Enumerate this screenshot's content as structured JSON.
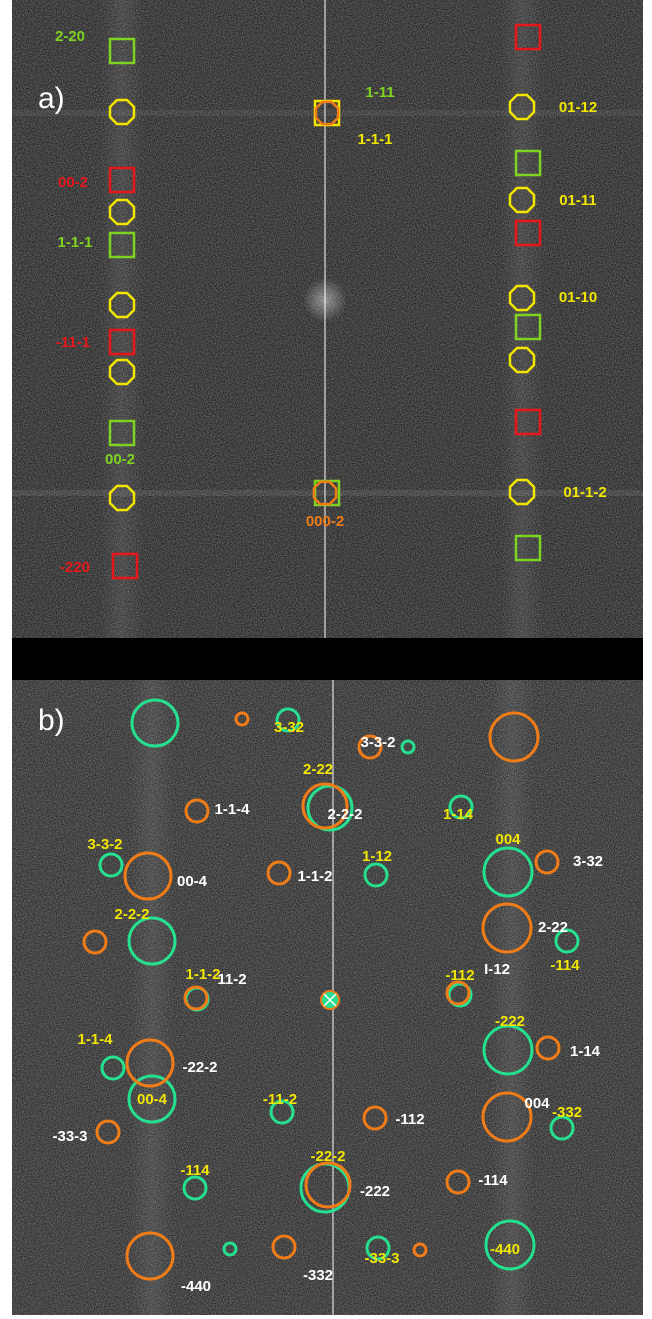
{
  "panel_a": {
    "tag": "a)",
    "labels": [
      "2-20",
      "1-11",
      "1-1-1",
      "01-12",
      "00-2",
      "01-11",
      "1-1-1",
      "01-10",
      "-11-1",
      "00-2",
      "01-1-2",
      "000-2",
      "-220"
    ]
  },
  "panel_b": {
    "tag": "b)",
    "labels": [
      "3-32",
      "3-3-2",
      "2-22",
      "1-14",
      "1-1-4",
      "2-2-2",
      "3-3-2",
      "004",
      "3-32",
      "1-12",
      "00-4",
      "1-1-2",
      "2-2-2",
      "2-22",
      "-114",
      "1-1-2",
      "-112",
      "11-2",
      "I-12",
      "-222",
      "1-1-4",
      "-22-2",
      "1-14",
      "00-4",
      "-11-2",
      "004",
      "-332",
      "-33-3",
      "-112",
      "-22-2",
      "-114",
      "-222",
      "-114",
      "-440",
      "-33-3",
      "-440",
      "-332"
    ]
  }
}
